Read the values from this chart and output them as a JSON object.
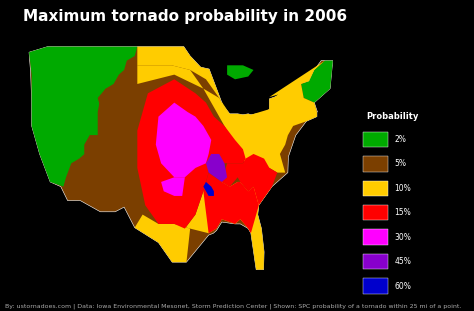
{
  "title": "Maximum tornado probability in 2006",
  "background_color": "#000000",
  "title_color": "#ffffff",
  "title_fontsize": 11,
  "legend_title": "Probability",
  "legend_items": [
    {
      "label": "2%",
      "color": "#00aa00"
    },
    {
      "label": "5%",
      "color": "#7b3f00"
    },
    {
      "label": "10%",
      "color": "#ffcc00"
    },
    {
      "label": "15%",
      "color": "#ff0000"
    },
    {
      "label": "30%",
      "color": "#ff00ff"
    },
    {
      "label": "45%",
      "color": "#8800cc"
    },
    {
      "label": "60%",
      "color": "#0000cc"
    }
  ],
  "footer_text": "By: ustornadoes.com | Data: Iowa Environmental Mesonet, Storm Prediction Center | Shown: SPC probability of a tornado within 25 mi of a point.",
  "footer_color": "#aaaaaa",
  "footer_fontsize": 4.5,
  "xlim": [
    -130,
    -60
  ],
  "ylim": [
    22,
    52
  ]
}
